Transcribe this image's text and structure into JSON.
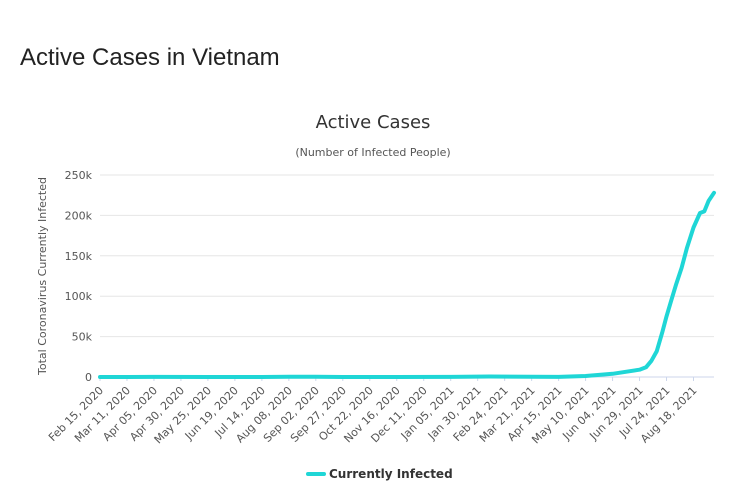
{
  "page": {
    "title": "Active Cases in Vietnam"
  },
  "chart_data": {
    "type": "line",
    "title": "Active Cases",
    "subtitle": "(Number of Infected People)",
    "ylabel": "Total Coronavirus Currently Infected",
    "xlabel": "",
    "x_tick_labels": [
      "Feb 15, 2020",
      "Mar 11, 2020",
      "Apr 05, 2020",
      "Apr 30, 2020",
      "May 25, 2020",
      "Jun 19, 2020",
      "Jul 14, 2020",
      "Aug 08, 2020",
      "Sep 02, 2020",
      "Sep 27, 2020",
      "Oct 22, 2020",
      "Nov 16, 2020",
      "Dec 11, 2020",
      "Jan 05, 2021",
      "Jan 30, 2021",
      "Feb 24, 2021",
      "Mar 21, 2021",
      "Apr 15, 2021",
      "May 10, 2021",
      "Jun 04, 2021",
      "Jun 29, 2021",
      "Jul 24, 2021",
      "Aug 18, 2021"
    ],
    "y_ticks": [
      0,
      50000,
      100000,
      150000,
      200000,
      250000
    ],
    "y_tick_labels": [
      "0",
      "50k",
      "100k",
      "150k",
      "200k",
      "250k"
    ],
    "ylim": [
      0,
      250000
    ],
    "xlim": [
      "2020-02-15",
      "2021-09-06"
    ],
    "grid": true,
    "legend_position": "bottom-center",
    "color": "#1fd6d6",
    "series": [
      {
        "name": "Currently Infected",
        "points": [
          [
            "2020-02-15",
            16
          ],
          [
            "2020-04-05",
            150
          ],
          [
            "2020-05-25",
            50
          ],
          [
            "2020-07-14",
            40
          ],
          [
            "2020-08-08",
            400
          ],
          [
            "2020-09-02",
            350
          ],
          [
            "2020-09-27",
            60
          ],
          [
            "2020-11-16",
            60
          ],
          [
            "2021-01-05",
            80
          ],
          [
            "2021-02-10",
            600
          ],
          [
            "2021-03-21",
            300
          ],
          [
            "2021-04-15",
            150
          ],
          [
            "2021-05-10",
            1200
          ],
          [
            "2021-06-04",
            4000
          ],
          [
            "2021-06-29",
            9000
          ],
          [
            "2021-07-05",
            12000
          ],
          [
            "2021-07-10",
            20000
          ],
          [
            "2021-07-15",
            32000
          ],
          [
            "2021-07-20",
            55000
          ],
          [
            "2021-07-24",
            75000
          ],
          [
            "2021-07-28",
            93000
          ],
          [
            "2021-08-02",
            115000
          ],
          [
            "2021-08-07",
            135000
          ],
          [
            "2021-08-12",
            160000
          ],
          [
            "2021-08-18",
            185000
          ],
          [
            "2021-08-24",
            203000
          ],
          [
            "2021-08-28",
            205000
          ],
          [
            "2021-09-01",
            218000
          ],
          [
            "2021-09-06",
            228000
          ]
        ]
      }
    ]
  }
}
